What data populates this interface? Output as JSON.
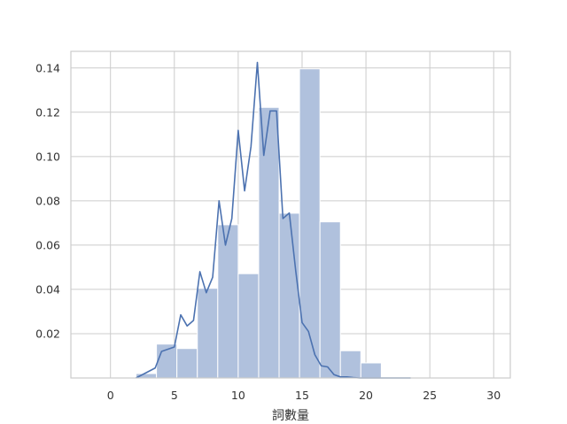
{
  "chart_data": {
    "type": "bar",
    "xlabel": "詞數量",
    "ylabel": "",
    "xlim": [
      -3.1,
      31.3
    ],
    "ylim": [
      0,
      0.1475
    ],
    "grid": true,
    "xticks": [
      0,
      5,
      10,
      15,
      20,
      25,
      30
    ],
    "yticks": [
      0.02,
      0.04,
      0.06,
      0.08,
      0.1,
      0.12,
      0.14
    ],
    "ytick_labels": [
      "0.02",
      "0.04",
      "0.06",
      "0.08",
      "0.10",
      "0.12",
      "0.14"
    ],
    "histogram": {
      "bins": [
        {
          "x0": 2.0,
          "x1": 3.6,
          "value": 0.002
        },
        {
          "x0": 3.6,
          "x1": 5.2,
          "value": 0.0153
        },
        {
          "x0": 5.2,
          "x1": 6.8,
          "value": 0.0133
        },
        {
          "x0": 6.8,
          "x1": 8.4,
          "value": 0.0405
        },
        {
          "x0": 8.4,
          "x1": 10.0,
          "value": 0.0692
        },
        {
          "x0": 10.0,
          "x1": 11.6,
          "value": 0.0471
        },
        {
          "x0": 11.6,
          "x1": 13.2,
          "value": 0.1222
        },
        {
          "x0": 13.2,
          "x1": 14.8,
          "value": 0.0744
        },
        {
          "x0": 14.8,
          "x1": 16.4,
          "value": 0.1396
        },
        {
          "x0": 16.4,
          "x1": 18.0,
          "value": 0.0705
        },
        {
          "x0": 18.0,
          "x1": 19.6,
          "value": 0.0123
        },
        {
          "x0": 19.6,
          "x1": 21.2,
          "value": 0.0068
        }
      ]
    },
    "kde_line": {
      "x": [
        2.0,
        2.5,
        3.0,
        3.5,
        4.0,
        4.5,
        5.0,
        5.5,
        6.0,
        6.5,
        7.0,
        7.5,
        8.0,
        8.5,
        9.0,
        9.5,
        10.0,
        10.5,
        11.0,
        11.5,
        12.0,
        12.5,
        13.0,
        13.5,
        14.0,
        14.5,
        15.0,
        15.5,
        16.0,
        16.5,
        17.0,
        17.5,
        18.0,
        18.5,
        19.0,
        19.5,
        20.0,
        20.5,
        21.0,
        21.5,
        22.0,
        22.5,
        23.0,
        23.5
      ],
      "y": [
        0.0,
        0.0015,
        0.003,
        0.0045,
        0.012,
        0.013,
        0.014,
        0.0285,
        0.0235,
        0.026,
        0.048,
        0.0385,
        0.0455,
        0.08,
        0.06,
        0.072,
        0.1118,
        0.0845,
        0.1045,
        0.1425,
        0.1005,
        0.1206,
        0.1206,
        0.072,
        0.0745,
        0.0485,
        0.025,
        0.021,
        0.0105,
        0.0055,
        0.005,
        0.0015,
        0.0005,
        0.0005,
        0.0002,
        0.0,
        0.0,
        0.0,
        0.0,
        0.0,
        0.0,
        0.0,
        0.0,
        0.0
      ]
    },
    "colors": {
      "bar_fill": "#b0c1dd",
      "bar_edge": "#ffffff",
      "line": "#4c72b0",
      "grid": "#cccccc",
      "axes_edge": "#cccccc"
    }
  }
}
